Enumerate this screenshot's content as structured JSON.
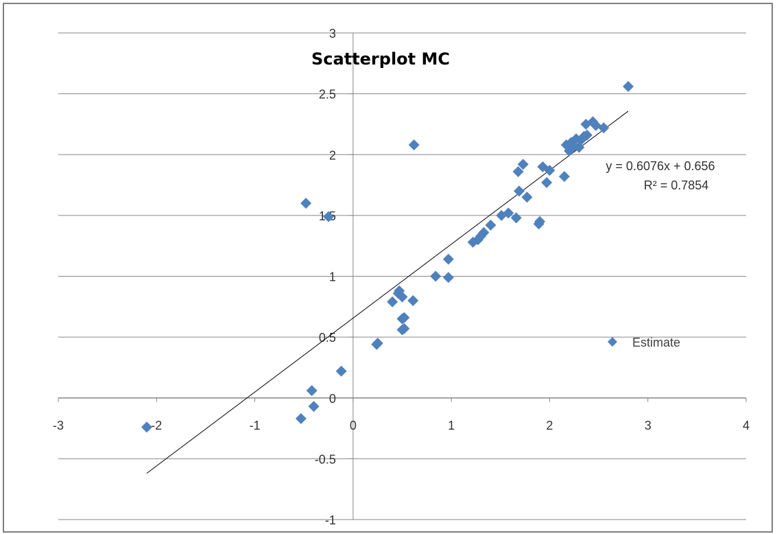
{
  "chart_data": {
    "type": "scatter",
    "title": "Scatterplot  MC",
    "xlabel": "",
    "ylabel": "",
    "xlim": [
      -3,
      4
    ],
    "ylim": [
      -1,
      3
    ],
    "grid": "horizontal",
    "legend_position": "right",
    "x_ticks": [
      "-3",
      "-2",
      "-1",
      "0",
      "1",
      "2",
      "3",
      "4"
    ],
    "y_ticks": [
      "-1",
      "-0.5",
      "0",
      "0.5",
      "1",
      "1.5",
      "2",
      "2.5",
      "3"
    ],
    "series": [
      {
        "name": "Estimate",
        "color": "#4f81bd",
        "marker": "diamond",
        "points": [
          [
            -2.1,
            -0.24
          ],
          [
            -0.53,
            -0.17
          ],
          [
            -0.4,
            -0.07
          ],
          [
            -0.42,
            0.06
          ],
          [
            -0.12,
            0.22
          ],
          [
            0.24,
            0.44
          ],
          [
            0.25,
            0.45
          ],
          [
            0.5,
            0.56
          ],
          [
            0.52,
            0.57
          ],
          [
            0.5,
            0.65
          ],
          [
            0.52,
            0.66
          ],
          [
            0.4,
            0.79
          ],
          [
            0.61,
            0.8
          ],
          [
            0.5,
            0.83
          ],
          [
            0.46,
            0.86
          ],
          [
            0.47,
            0.88
          ],
          [
            0.84,
            1.0
          ],
          [
            0.97,
            0.99
          ],
          [
            0.97,
            1.14
          ],
          [
            1.22,
            1.28
          ],
          [
            1.27,
            1.3
          ],
          [
            1.3,
            1.33
          ],
          [
            1.33,
            1.36
          ],
          [
            1.4,
            1.42
          ],
          [
            1.51,
            1.5
          ],
          [
            1.58,
            1.52
          ],
          [
            1.66,
            1.48
          ],
          [
            1.89,
            1.43
          ],
          [
            1.9,
            1.45
          ],
          [
            1.69,
            1.7
          ],
          [
            1.77,
            1.65
          ],
          [
            1.68,
            1.86
          ],
          [
            1.73,
            1.92
          ],
          [
            1.93,
            1.9
          ],
          [
            1.97,
            1.77
          ],
          [
            2.0,
            1.87
          ],
          [
            2.15,
            1.82
          ],
          [
            2.17,
            2.08
          ],
          [
            2.2,
            2.03
          ],
          [
            2.22,
            2.1
          ],
          [
            2.25,
            2.07
          ],
          [
            2.27,
            2.13
          ],
          [
            2.3,
            2.06
          ],
          [
            2.32,
            2.12
          ],
          [
            2.35,
            2.15
          ],
          [
            2.38,
            2.16
          ],
          [
            2.37,
            2.25
          ],
          [
            2.44,
            2.27
          ],
          [
            2.47,
            2.24
          ],
          [
            2.55,
            2.22
          ],
          [
            2.8,
            2.56
          ],
          [
            -0.48,
            1.6
          ],
          [
            -0.25,
            1.49
          ],
          [
            0.62,
            2.08
          ]
        ]
      }
    ],
    "trendline": {
      "slope": 0.6076,
      "intercept": 0.656,
      "x_range": [
        -2.1,
        2.8
      ],
      "equation_label": "y = 0.6076x + 0.656",
      "r2_label": "R² = 0.7854"
    }
  }
}
